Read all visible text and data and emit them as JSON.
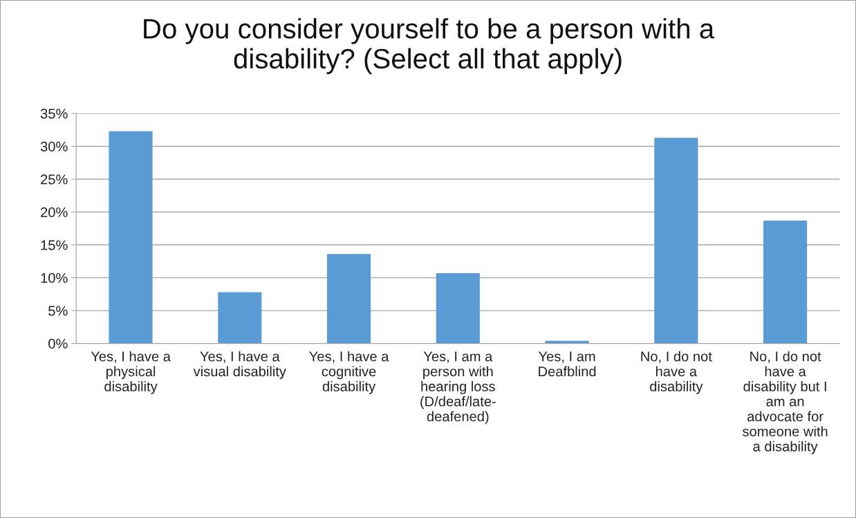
{
  "chart_data": {
    "type": "bar",
    "title": "Do you consider yourself to be a person with a\ndisability? (Select all that apply)",
    "categories": [
      "Yes, I have a\nphysical\ndisability",
      "Yes, I have a\nvisual disability",
      "Yes, I have a\ncognitive\ndisability",
      "Yes, I am a\nperson with\nhearing loss\n(D/deaf/late-\ndeafened)",
      "Yes, I am\nDeafblind",
      "No, I do not\nhave a\ndisability",
      "No, I do not\nhave a\ndisability but I\nam an\nadvocate for\nsomeone with\na disability"
    ],
    "values": [
      32.3,
      7.8,
      13.6,
      10.7,
      0.4,
      31.3,
      18.7
    ],
    "color": "#5b9bd5",
    "ylim": [
      0,
      35
    ],
    "yticks": [
      {
        "value": 0,
        "label": "0%"
      },
      {
        "value": 5,
        "label": "5%"
      },
      {
        "value": 10,
        "label": "10%"
      },
      {
        "value": 15,
        "label": "15%"
      },
      {
        "value": 20,
        "label": "20%"
      },
      {
        "value": 25,
        "label": "25%"
      },
      {
        "value": 30,
        "label": "30%"
      },
      {
        "value": 35,
        "label": "35%"
      }
    ],
    "grid": "y",
    "legend": false
  }
}
